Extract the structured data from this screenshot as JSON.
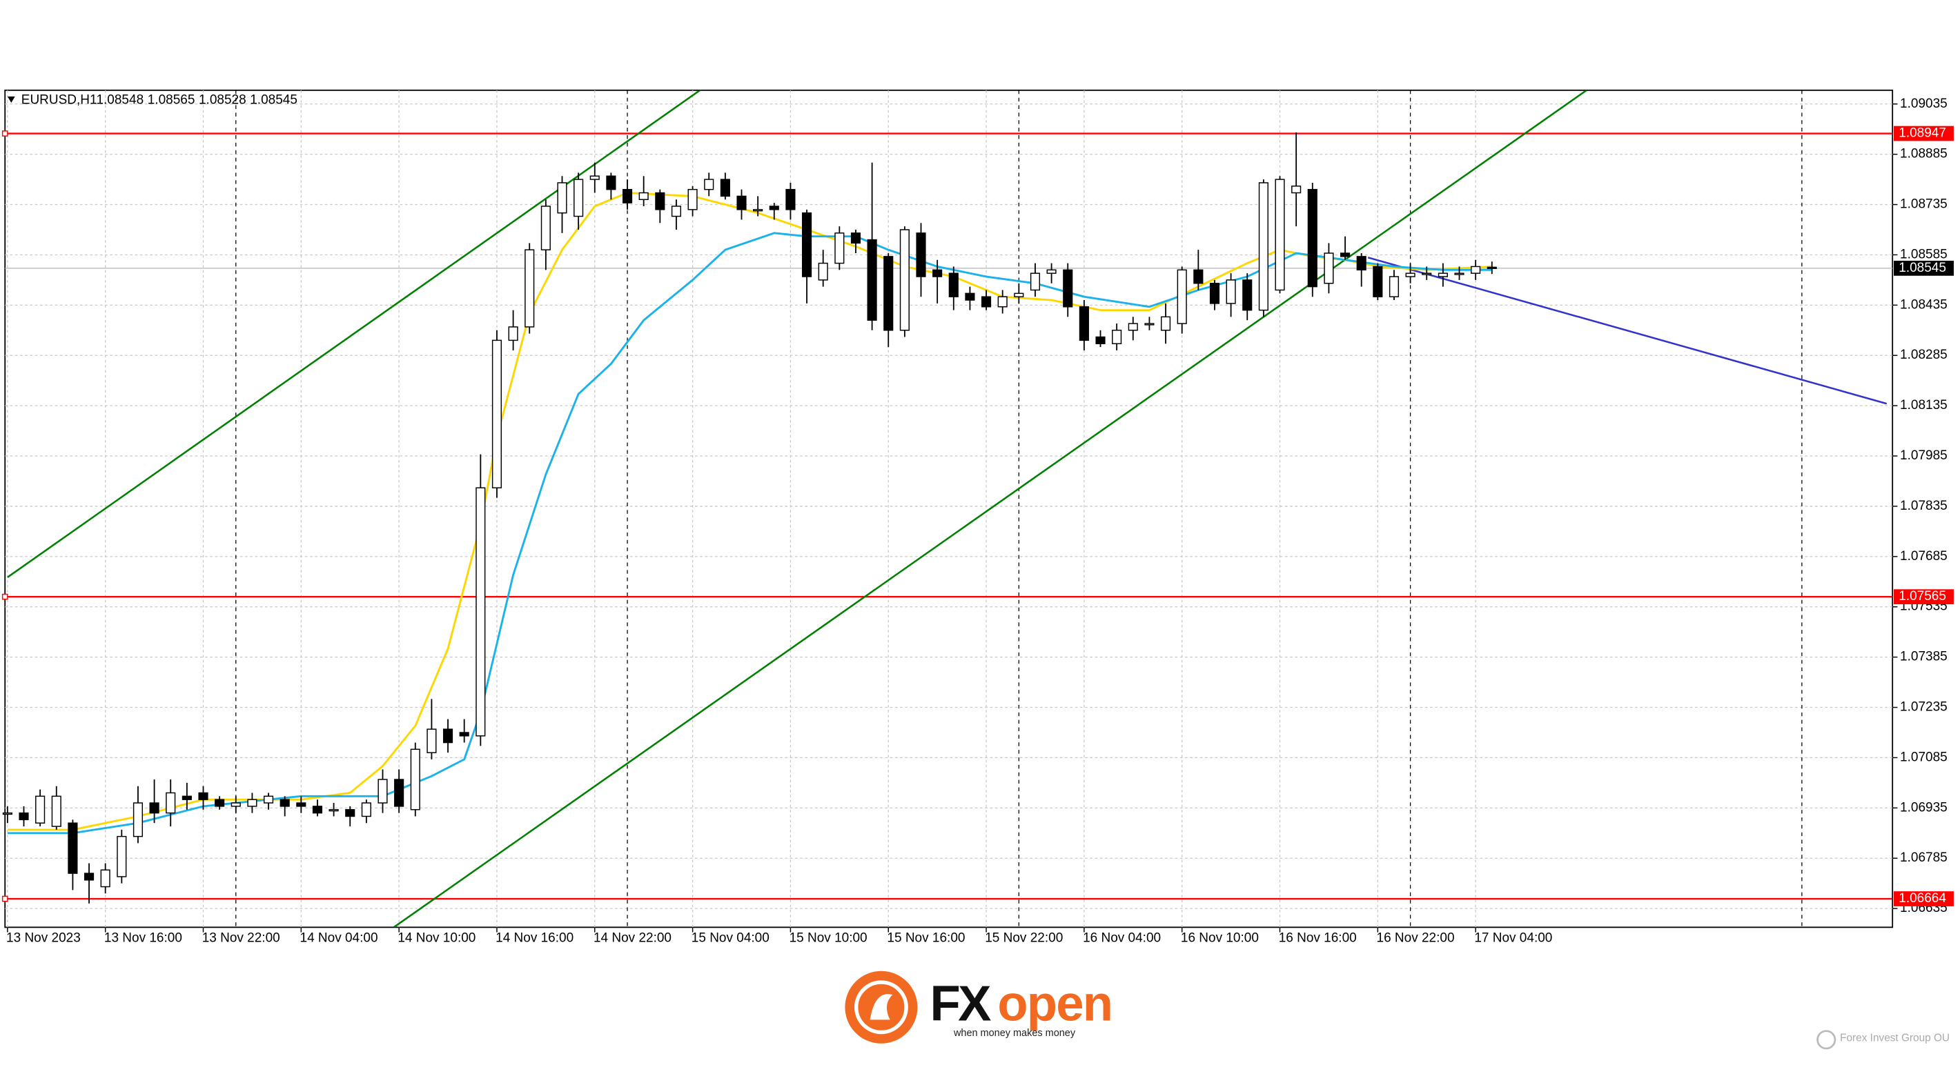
{
  "chart_data": {
    "type": "candlestick",
    "symbol": "EURUSD,H1",
    "categories": [
      "13 Nov 2023",
      null,
      null,
      null,
      null,
      null,
      "13 Nov 16:00",
      null,
      null,
      null,
      null,
      null,
      "13 Nov 22:00",
      null,
      null,
      null,
      null,
      null,
      "14 Nov 04:00",
      null,
      null,
      null,
      null,
      null,
      "14 Nov 10:00",
      null,
      null,
      null,
      null,
      null,
      "14 Nov 16:00",
      null,
      null,
      null,
      null,
      null,
      "14 Nov 22:00",
      null,
      null,
      null,
      null,
      null,
      "15 Nov 04:00",
      null,
      null,
      null,
      null,
      null,
      "15 Nov 10:00",
      null,
      null,
      null,
      null,
      null,
      "15 Nov 16:00",
      null,
      null,
      null,
      null,
      null,
      "15 Nov 22:00",
      null,
      null,
      null,
      null,
      null,
      "16 Nov 04:00",
      null,
      null,
      null,
      null,
      null,
      "16 Nov 10:00",
      null,
      null,
      null,
      null,
      null,
      "16 Nov 16:00",
      null,
      null,
      null,
      null,
      null,
      "16 Nov 22:00",
      null,
      null,
      null,
      null,
      null,
      "17 Nov 04:00",
      null
    ],
    "open": [
      1.0692,
      1.0692,
      1.0689,
      1.0688,
      1.0689,
      1.0674,
      1.067,
      1.0673,
      1.0685,
      1.0695,
      1.0692,
      1.0697,
      1.0698,
      1.0696,
      1.0694,
      1.0694,
      1.0695,
      1.0696,
      1.0695,
      1.0694,
      1.0693,
      1.0693,
      1.0691,
      1.0695,
      1.0702,
      1.0693,
      1.071,
      1.0717,
      1.0716,
      1.0715,
      1.0789,
      1.0833,
      1.0837,
      1.086,
      1.0871,
      1.087,
      1.0881,
      1.0882,
      1.0878,
      1.0875,
      1.0877,
      1.087,
      1.0872,
      1.0878,
      1.0881,
      1.0876,
      1.0872,
      1.0873,
      1.0878,
      1.0871,
      1.0851,
      1.0856,
      1.0865,
      1.0863,
      1.0858,
      1.0836,
      1.0865,
      1.0854,
      1.0853,
      1.0847,
      1.0846,
      1.0843,
      1.0846,
      1.0848,
      1.0853,
      1.0854,
      1.0843,
      1.0834,
      1.0832,
      1.0836,
      1.0838,
      1.0836,
      1.0838,
      1.0854,
      1.085,
      1.0844,
      1.0851,
      1.0842,
      1.0848,
      1.0877,
      1.0878,
      1.085,
      1.0859,
      1.0858,
      1.0855,
      1.0846,
      1.0852,
      1.0853,
      1.0852,
      1.0853,
      1.0853,
      1.08548
    ],
    "high": [
      1.0694,
      1.0694,
      1.0699,
      1.07,
      1.069,
      1.0677,
      1.0677,
      1.0687,
      1.07,
      1.0702,
      1.0702,
      1.0701,
      1.07,
      1.0697,
      1.0697,
      1.0698,
      1.0698,
      1.0697,
      1.0697,
      1.0696,
      1.0695,
      1.0694,
      1.0696,
      1.0705,
      1.0705,
      1.0713,
      1.0726,
      1.072,
      1.072,
      1.0799,
      1.0836,
      1.0842,
      1.0862,
      1.0875,
      1.0882,
      1.0883,
      1.0886,
      1.0883,
      1.0881,
      1.0882,
      1.0878,
      1.0875,
      1.0879,
      1.0883,
      1.0883,
      1.0878,
      1.0876,
      1.0874,
      1.088,
      1.0872,
      1.086,
      1.0867,
      1.0866,
      1.0886,
      1.0859,
      1.0867,
      1.0868,
      1.0857,
      1.0855,
      1.0849,
      1.0848,
      1.0848,
      1.085,
      1.0856,
      1.0856,
      1.0856,
      1.0845,
      1.0836,
      1.0838,
      1.084,
      1.084,
      1.0844,
      1.0855,
      1.086,
      1.0851,
      1.0853,
      1.0853,
      1.0881,
      1.0882,
      1.0895,
      1.088,
      1.0862,
      1.0864,
      1.0859,
      1.0856,
      1.0854,
      1.0856,
      1.0855,
      1.0856,
      1.0855,
      1.0857,
      1.08565
    ],
    "low": [
      1.0689,
      1.0688,
      1.0688,
      1.0687,
      1.0669,
      1.0665,
      1.0668,
      1.0671,
      1.0683,
      1.0689,
      1.0688,
      1.0693,
      1.0693,
      1.0693,
      1.0692,
      1.0692,
      1.0693,
      1.0691,
      1.0692,
      1.0691,
      1.0691,
      1.0688,
      1.0689,
      1.0692,
      1.0692,
      1.0691,
      1.0708,
      1.071,
      1.0713,
      1.0712,
      1.0786,
      1.083,
      1.0835,
      1.0854,
      1.0865,
      1.0866,
      1.0877,
      1.0875,
      1.0872,
      1.0873,
      1.0868,
      1.0866,
      1.087,
      1.0876,
      1.0875,
      1.0869,
      1.087,
      1.0869,
      1.0869,
      1.0844,
      1.0849,
      1.0854,
      1.0859,
      1.0836,
      1.0831,
      1.0834,
      1.0846,
      1.0844,
      1.0842,
      1.0842,
      1.0842,
      1.0841,
      1.0844,
      1.0846,
      1.085,
      1.084,
      1.083,
      1.0831,
      1.083,
      1.0833,
      1.0836,
      1.0832,
      1.0835,
      1.0848,
      1.0842,
      1.084,
      1.0839,
      1.084,
      1.0847,
      1.0867,
      1.0846,
      1.0847,
      1.0857,
      1.0849,
      1.0845,
      1.0845,
      1.085,
      1.0851,
      1.0849,
      1.0851,
      1.0851,
      1.08528
    ],
    "close": [
      1.0692,
      1.069,
      1.0697,
      1.0697,
      1.0674,
      1.0672,
      1.0675,
      1.0685,
      1.0695,
      1.0692,
      1.0698,
      1.0696,
      1.0696,
      1.0694,
      1.0695,
      1.0696,
      1.0697,
      1.0694,
      1.0694,
      1.0692,
      1.0693,
      1.0691,
      1.0695,
      1.0702,
      1.0694,
      1.0711,
      1.0717,
      1.0713,
      1.0715,
      1.0789,
      1.0833,
      1.0837,
      1.086,
      1.0873,
      1.088,
      1.0881,
      1.0882,
      1.0878,
      1.0874,
      1.0877,
      1.0872,
      1.0873,
      1.0878,
      1.0881,
      1.0876,
      1.0872,
      1.0872,
      1.0872,
      1.0872,
      1.0852,
      1.0856,
      1.0865,
      1.0862,
      1.0839,
      1.0836,
      1.0866,
      1.0852,
      1.0852,
      1.0846,
      1.0845,
      1.0843,
      1.0846,
      1.0847,
      1.0853,
      1.0854,
      1.0843,
      1.0833,
      1.0832,
      1.0836,
      1.0838,
      1.0838,
      1.084,
      1.0854,
      1.085,
      1.0844,
      1.0851,
      1.0842,
      1.088,
      1.0881,
      1.0879,
      1.0849,
      1.0859,
      1.0858,
      1.0854,
      1.0846,
      1.0852,
      1.0853,
      1.0853,
      1.0853,
      1.0853,
      1.0855,
      1.08545
    ],
    "up_color": "#ffffff",
    "down_color": "#000000",
    "moving_averages": [
      {
        "color": "#ffd700",
        "x": [
          0,
          4,
          8,
          12,
          18,
          21,
          23,
          25,
          27,
          29,
          30,
          32,
          34,
          36,
          38,
          42,
          46,
          49,
          52,
          55,
          58,
          61,
          64,
          67,
          70,
          73,
          76,
          78,
          80,
          82,
          84,
          87,
          91
        ],
        "values": [
          1.0687,
          1.0687,
          1.0691,
          1.0696,
          1.0696,
          1.0698,
          1.0706,
          1.0718,
          1.0741,
          1.0778,
          1.0804,
          1.0841,
          1.086,
          1.0873,
          1.0877,
          1.0876,
          1.0871,
          1.0866,
          1.0861,
          1.0855,
          1.0852,
          1.0846,
          1.0845,
          1.0842,
          1.0842,
          1.0849,
          1.0856,
          1.086,
          1.0858,
          1.0857,
          1.0855,
          1.0854,
          1.0855
        ]
      },
      {
        "color": "#1ab2ea",
        "x": [
          0,
          4,
          8,
          12,
          18,
          23,
          26,
          28,
          29,
          31,
          33,
          35,
          37,
          39,
          42,
          44,
          47,
          49,
          52,
          54,
          57,
          60,
          63,
          66,
          70,
          73,
          76,
          79,
          82,
          85,
          88,
          91
        ],
        "values": [
          1.0686,
          1.0686,
          1.0689,
          1.0694,
          1.0697,
          1.0697,
          1.0703,
          1.0708,
          1.0722,
          1.0763,
          1.0793,
          1.0817,
          1.0826,
          1.0839,
          1.0851,
          1.086,
          1.0865,
          1.0864,
          1.0864,
          1.086,
          1.0855,
          1.0852,
          1.085,
          1.0846,
          1.0843,
          1.0848,
          1.0852,
          1.0859,
          1.0857,
          1.0855,
          1.0854,
          1.0854
        ]
      }
    ],
    "trendlines": [
      {
        "color": "#008000",
        "x": [
          0,
          42.45
        ],
        "values": [
          1.07623,
          1.09076
        ]
      },
      {
        "color": "#008000",
        "x": [
          23.68,
          96.8
        ],
        "values": [
          1.06579,
          1.09076
        ]
      },
      {
        "color": "#3333cc",
        "x": [
          83.4,
          115.2
        ],
        "values": [
          1.08577,
          1.08141
        ]
      }
    ],
    "levels": [
      {
        "value": 1.08947,
        "color": "#ff0000"
      },
      {
        "value": 1.07565,
        "color": "#ff0000"
      },
      {
        "value": 1.06664,
        "color": "#ff0000"
      }
    ],
    "ylim": [
      1.06579,
      1.09076
    ],
    "yticks": [
      1.09035,
      1.08885,
      1.08735,
      1.08585,
      1.08435,
      1.08285,
      1.08135,
      1.07985,
      1.07835,
      1.07685,
      1.07535,
      1.07385,
      1.07235,
      1.07085,
      1.06935,
      1.06785,
      1.06635
    ],
    "grid": true
  },
  "logo": {
    "prefix": "FX",
    "suffix": "open",
    "tagline": "when money makes money",
    "company": "Forex Invest Group OU"
  }
}
